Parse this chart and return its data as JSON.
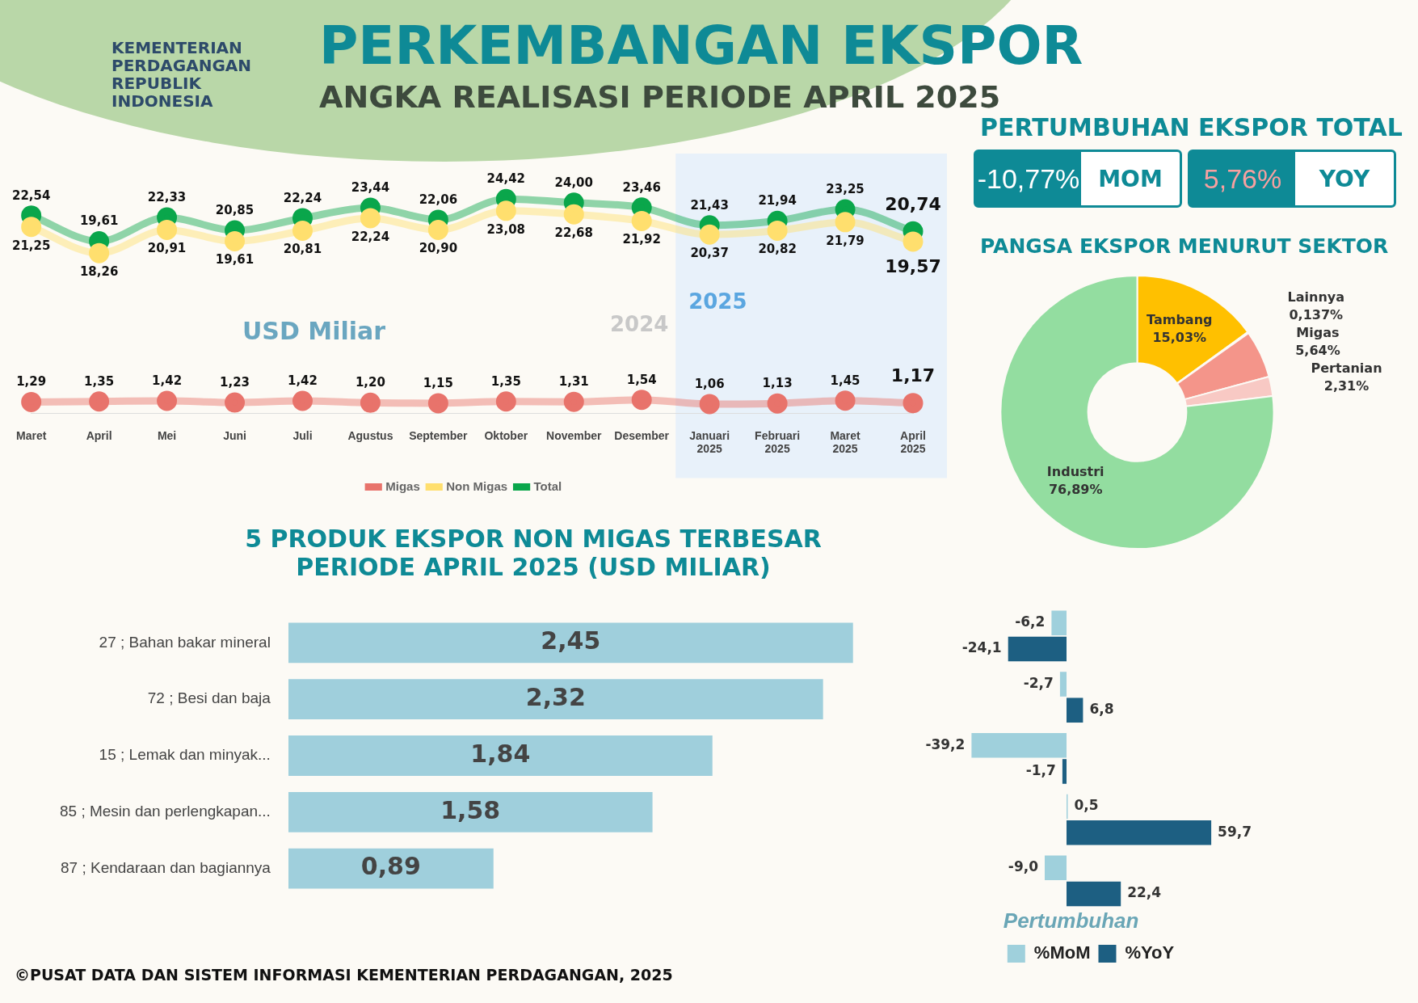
{
  "chart_data": [
    {
      "type": "line",
      "title": "PERKEMBANGAN EKSPOR",
      "subtitle": "ANGKA REALISASI PERIODE APRIL 2025",
      "categories": [
        "Maret",
        "April",
        "Mei",
        "Juni",
        "Juli",
        "Agustus",
        "September",
        "Oktober",
        "November",
        "Desember",
        "Januari 2025",
        "Februari 2025",
        "Maret 2025",
        "April 2025"
      ],
      "series": [
        {
          "name": "Migas",
          "color": "#e8736b",
          "values": [
            1.29,
            1.35,
            1.42,
            1.23,
            1.42,
            1.2,
            1.15,
            1.35,
            1.31,
            1.54,
            1.06,
            1.13,
            1.45,
            1.17
          ],
          "value_labels": [
            "1,29",
            "1,35",
            "1,42",
            "1,23",
            "1,42",
            "1,20",
            "1,15",
            "1,35",
            "1,31",
            "1,54",
            "1,06",
            "1,13",
            "1,45",
            "1,17"
          ]
        },
        {
          "name": "Non Migas",
          "color": "#ffdf6e",
          "values": [
            21.25,
            18.26,
            20.91,
            19.61,
            20.81,
            22.24,
            20.9,
            23.08,
            22.68,
            21.92,
            20.37,
            20.82,
            21.79,
            19.57
          ],
          "value_labels": [
            "21,25",
            "18,26",
            "20,91",
            "19,61",
            "20,81",
            "22,24",
            "20,90",
            "23,08",
            "22,68",
            "21,92",
            "20,37",
            "20,82",
            "21,79",
            "19,57"
          ]
        },
        {
          "name": "Total",
          "color": "#0aa64b",
          "values": [
            22.54,
            19.61,
            22.33,
            20.85,
            22.24,
            23.44,
            22.06,
            24.42,
            24.0,
            23.46,
            21.43,
            21.94,
            23.25,
            20.74
          ],
          "value_labels": [
            "22,54",
            "19,61",
            "22,33",
            "20,85",
            "22,24",
            "23,44",
            "22,06",
            "24,42",
            "24,00",
            "23,46",
            "21,43",
            "21,94",
            "23,25",
            "20,74"
          ]
        }
      ],
      "bands": [
        {
          "axis": "x",
          "from": "Januari 2025",
          "to": "April 2025",
          "label": "2025",
          "color": "#e8f1fa"
        }
      ],
      "annotations": [
        "KEMENTERIAN PERDAGANGAN REPUBLIK INDONESIA",
        "USD Miliar",
        "2024"
      ],
      "marker": "circle",
      "legend": "bottom",
      "grid": false
    },
    {
      "type": "other",
      "title": "PERTUMBUHAN EKSPOR TOTAL",
      "annotations": [
        "-10,77%",
        "MOM",
        "5,76%",
        "YOY"
      ]
    },
    {
      "type": "donut",
      "title": "PANGSA EKSPOR MENURUT SEKTOR",
      "categories": [
        "Tambang",
        "Lainnya",
        "Migas",
        "Pertanian",
        "Industri"
      ],
      "values": [
        15.03,
        0.137,
        5.64,
        2.31,
        76.89
      ],
      "colors": [
        "#ffc000",
        "#c00000",
        "#f4958a",
        "#f8c9c4",
        "#93dda0"
      ],
      "value_labels": [
        "15,03%",
        "0,137%",
        "5,64%",
        "2,31%",
        "76,89%"
      ],
      "legend": false
    },
    {
      "type": "bar",
      "orientation": "horizontal",
      "title": "5 PRODUK EKSPOR NON MIGAS TERBESAR PERIODE APRIL 2025 (USD MILIAR)",
      "categories": [
        "27 ; Bahan bakar mineral",
        "72 ; Besi dan baja",
        "15 ; Lemak dan minyak...",
        "85 ; Mesin dan perlengkapan...",
        "87 ; Kendaraan dan bagiannya"
      ],
      "values": [
        2.45,
        2.32,
        1.84,
        1.58,
        0.89
      ],
      "color": "#9fcfdc",
      "value_labels": [
        "2,45",
        "2,32",
        "1,84",
        "1,58",
        "0,89"
      ],
      "annotations": [
        "©PUSAT DATA DAN SISTEM INFORMASI KEMENTERIAN PERDAGANGAN, 2025"
      ],
      "legend": false,
      "grid": false
    },
    {
      "type": "bar",
      "orientation": "horizontal",
      "legend_title": "Pertumbuhan",
      "categories": [
        null,
        null,
        null,
        null,
        null
      ],
      "series": [
        {
          "name": "%MoM",
          "color": "#9fd0dc",
          "values": [
            -6.2,
            -2.7,
            -39.2,
            0.5,
            -9.0
          ],
          "value_labels": [
            "-6,2",
            "-2,7",
            "-39,2",
            "0,5",
            "-9,0"
          ]
        },
        {
          "name": "%YoY",
          "color": "#1d5f82",
          "values": [
            -24.1,
            6.8,
            -1.7,
            59.7,
            22.4
          ],
          "value_labels": [
            "-24,1",
            "6,8",
            "-1,7",
            "59,7",
            "22,4"
          ]
        }
      ],
      "legend": "bottom",
      "grid": false
    }
  ]
}
